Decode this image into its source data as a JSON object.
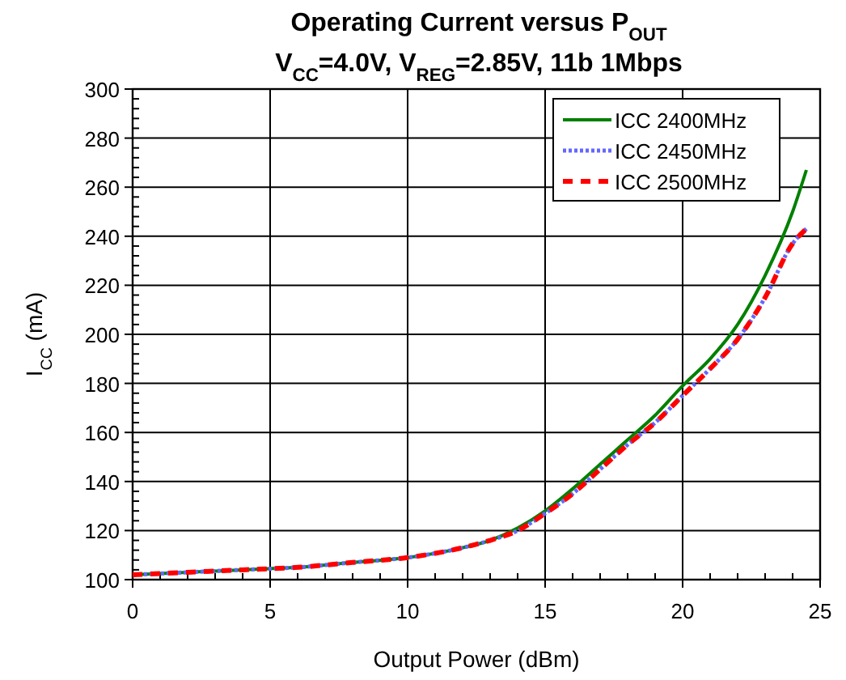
{
  "chart_data": {
    "type": "line",
    "title": "Operating Current versus P$_{OUT}$",
    "subtitle": "V$_{CC}$=4.0V, V$_{REG}$=2.85V, 11b 1Mbps",
    "xlabel": "Output Power (dBm)",
    "ylabel": "I$_{CC}$ (mA)",
    "x": [
      0,
      2,
      4,
      6,
      8,
      10,
      12,
      13,
      14,
      15,
      16,
      17,
      18,
      19,
      20,
      21,
      22,
      23,
      24,
      24.5
    ],
    "xlim": [
      0,
      25
    ],
    "xticks": [
      0,
      5,
      10,
      15,
      20,
      25
    ],
    "ylim": [
      100,
      300
    ],
    "yticks": [
      100,
      120,
      140,
      160,
      180,
      200,
      220,
      240,
      260,
      280,
      300
    ],
    "grid": true,
    "legend": "top right",
    "series": [
      {
        "name": "ICC 2400MHz",
        "color": "#008000",
        "line_style": "solid",
        "values": [
          102,
          103,
          104,
          105,
          107,
          109,
          113,
          116,
          121,
          128,
          137,
          147,
          157,
          167,
          179,
          190,
          204,
          224,
          250,
          267
        ]
      },
      {
        "name": "ICC 2450MHz",
        "color": "#6666ff",
        "line_style": "dotted",
        "values": [
          102,
          103,
          104,
          105,
          107,
          109,
          113,
          116,
          120,
          127,
          135,
          145,
          155,
          164,
          175,
          186,
          198,
          215,
          237,
          243
        ]
      },
      {
        "name": "ICC 2500MHz",
        "color": "#ff0000",
        "line_style": "dashed",
        "values": [
          102,
          103,
          104,
          105,
          107,
          109,
          113,
          116,
          120,
          127,
          135,
          145,
          155,
          164,
          175,
          186,
          198,
          215,
          237,
          243
        ]
      }
    ]
  }
}
